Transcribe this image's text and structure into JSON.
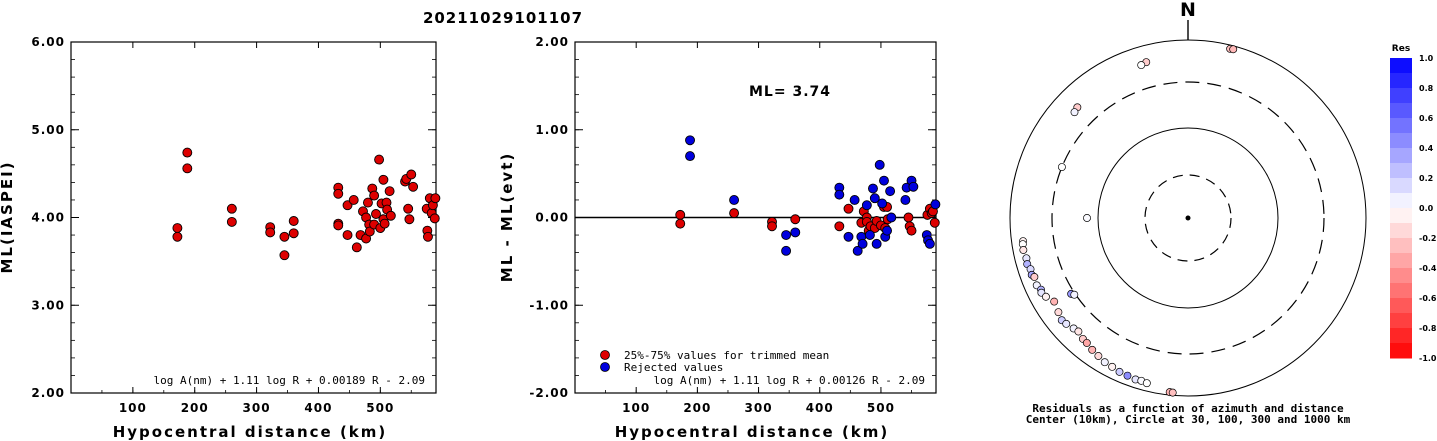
{
  "title": "20211029101107",
  "chart_data": [
    {
      "type": "scatter",
      "ylabel": "ML(IASPEI)",
      "xlabel": "Hypocentral distance (km)",
      "xlim": [
        0,
        590
      ],
      "ylim": [
        2.0,
        6.0
      ],
      "xticks": [
        "100",
        "200",
        "300",
        "400",
        "500"
      ],
      "xtick_values": [
        100,
        200,
        300,
        400,
        500
      ],
      "yticks": [
        "2.00",
        "3.00",
        "4.00",
        "5.00",
        "6.00"
      ],
      "ytick_values": [
        2,
        3,
        4,
        5,
        6
      ],
      "formula": "log A(nm) + 1.11 log R + 0.00189 R - 2.09",
      "point_color": "#dd0000",
      "points": [
        [
          172,
          3.88
        ],
        [
          172,
          3.78
        ],
        [
          188,
          4.74
        ],
        [
          188,
          4.56
        ],
        [
          260,
          4.1
        ],
        [
          260,
          3.95
        ],
        [
          322,
          3.89
        ],
        [
          322,
          3.83
        ],
        [
          345,
          3.57
        ],
        [
          345,
          3.78
        ],
        [
          360,
          3.96
        ],
        [
          360,
          3.82
        ],
        [
          432,
          4.34
        ],
        [
          432,
          4.27
        ],
        [
          432,
          3.93
        ],
        [
          432,
          3.91
        ],
        [
          447,
          4.14
        ],
        [
          447,
          3.8
        ],
        [
          457,
          4.2
        ],
        [
          462,
          3.66
        ],
        [
          468,
          3.8
        ],
        [
          472,
          4.07
        ],
        [
          477,
          4.0
        ],
        [
          477,
          3.76
        ],
        [
          480,
          4.17
        ],
        [
          482,
          3.92
        ],
        [
          483,
          3.84
        ],
        [
          487,
          4.33
        ],
        [
          490,
          4.25
        ],
        [
          490,
          3.92
        ],
        [
          493,
          4.04
        ],
        [
          498,
          4.66
        ],
        [
          500,
          3.88
        ],
        [
          502,
          4.16
        ],
        [
          505,
          4.43
        ],
        [
          505,
          3.98
        ],
        [
          507,
          3.93
        ],
        [
          510,
          4.17
        ],
        [
          511,
          4.09
        ],
        [
          515,
          4.3
        ],
        [
          517,
          4.02
        ],
        [
          540,
          4.41
        ],
        [
          542,
          4.44
        ],
        [
          545,
          4.1
        ],
        [
          547,
          3.98
        ],
        [
          550,
          4.49
        ],
        [
          553,
          4.35
        ],
        [
          575,
          4.1
        ],
        [
          576,
          3.85
        ],
        [
          577,
          3.78
        ],
        [
          580,
          4.22
        ],
        [
          583,
          4.05
        ],
        [
          585,
          4.14
        ],
        [
          588,
          3.99
        ],
        [
          589,
          4.22
        ]
      ]
    },
    {
      "type": "scatter",
      "ylabel": "ML - ML(evt)",
      "xlabel": "Hypocentral distance (km)",
      "xlim": [
        0,
        590
      ],
      "ylim": [
        -2.0,
        2.0
      ],
      "xticks": [
        "100",
        "200",
        "300",
        "400",
        "500"
      ],
      "xtick_values": [
        100,
        200,
        300,
        400,
        500
      ],
      "yticks": [
        "-2.00",
        "-1.00",
        "0.00",
        "1.00",
        "2.00"
      ],
      "ytick_values": [
        -2,
        -1,
        0,
        1,
        2
      ],
      "annotation": "ML= 3.74",
      "formula": "log A(nm) + 1.11 log R + 0.00126 R - 2.09",
      "legend": [
        {
          "label": "25%-75% values for trimmed mean",
          "color": "#dd0000"
        },
        {
          "label": "Rejected values",
          "color": "#0000dd"
        }
      ],
      "series": [
        {
          "name": "25%-75% values for trimmed mean",
          "color": "#dd0000",
          "points": [
            [
              172,
              0.03
            ],
            [
              172,
              -0.07
            ],
            [
              260,
              0.05
            ],
            [
              322,
              -0.05
            ],
            [
              322,
              -0.1
            ],
            [
              360,
              -0.02
            ],
            [
              432,
              -0.1
            ],
            [
              447,
              0.1
            ],
            [
              468,
              -0.06
            ],
            [
              472,
              0.07
            ],
            [
              477,
              0.0
            ],
            [
              477,
              -0.05
            ],
            [
              480,
              -0.15
            ],
            [
              483,
              -0.1
            ],
            [
              490,
              -0.12
            ],
            [
              493,
              -0.04
            ],
            [
              500,
              -0.09
            ],
            [
              505,
              0.12
            ],
            [
              507,
              -0.12
            ],
            [
              510,
              0.12
            ],
            [
              511,
              -0.02
            ],
            [
              545,
              0.0
            ],
            [
              547,
              -0.1
            ],
            [
              550,
              -0.15
            ],
            [
              576,
              0.03
            ],
            [
              580,
              0.1
            ],
            [
              583,
              0.05
            ],
            [
              585,
              0.07
            ],
            [
              588,
              -0.06
            ]
          ]
        },
        {
          "name": "Rejected values",
          "color": "#0000dd",
          "points": [
            [
              188,
              0.88
            ],
            [
              188,
              0.7
            ],
            [
              260,
              0.2
            ],
            [
              345,
              -0.38
            ],
            [
              345,
              -0.2
            ],
            [
              360,
              -0.17
            ],
            [
              432,
              0.34
            ],
            [
              432,
              0.26
            ],
            [
              447,
              -0.22
            ],
            [
              457,
              0.2
            ],
            [
              462,
              -0.38
            ],
            [
              468,
              -0.22
            ],
            [
              470,
              -0.3
            ],
            [
              477,
              0.14
            ],
            [
              482,
              -0.2
            ],
            [
              487,
              0.33
            ],
            [
              490,
              0.22
            ],
            [
              493,
              -0.3
            ],
            [
              498,
              0.6
            ],
            [
              502,
              0.16
            ],
            [
              505,
              0.42
            ],
            [
              507,
              -0.22
            ],
            [
              510,
              -0.15
            ],
            [
              515,
              0.3
            ],
            [
              517,
              0.0
            ],
            [
              540,
              0.2
            ],
            [
              542,
              0.34
            ],
            [
              550,
              0.42
            ],
            [
              553,
              0.35
            ],
            [
              575,
              -0.2
            ],
            [
              577,
              -0.26
            ],
            [
              580,
              -0.3
            ],
            [
              589,
              0.15
            ]
          ]
        }
      ]
    },
    {
      "type": "polar-scatter",
      "north_label": "N",
      "caption_line1": "Residuals as a function of azimuth and distance",
      "caption_line2": "Center (10km), Circle at 30, 100, 300 and 1000 km",
      "rings_km": [
        30,
        100,
        300,
        1000
      ],
      "colorbar": {
        "title": "Res",
        "labels": [
          "1.0",
          "0.8",
          "0.6",
          "0.4",
          "0.2",
          "0.0",
          "-0.2",
          "-0.4",
          "-0.6",
          "-0.8",
          "-1.0"
        ],
        "max_color": "#0000ff",
        "zero_color": "#ffffff",
        "min_color": "#ff0000"
      },
      "stations": [
        {
          "az": 14,
          "dist": 900,
          "res": -0.25
        },
        {
          "az": 15,
          "dist": 910,
          "res": -0.28
        },
        {
          "az": 345,
          "dist": 620,
          "res": -0.2
        },
        {
          "az": 343,
          "dist": 595,
          "res": 0.0
        },
        {
          "az": 315,
          "dist": 540,
          "res": -0.2
        },
        {
          "az": 313,
          "dist": 520,
          "res": 0.05
        },
        {
          "az": 292,
          "dist": 300,
          "res": 0.0
        },
        {
          "az": 270,
          "dist": 130,
          "res": 0.02
        },
        {
          "az": 262,
          "dist": 720,
          "res": -0.05
        },
        {
          "az": 261,
          "dist": 735,
          "res": 0.0
        },
        {
          "az": 259,
          "dist": 745,
          "res": -0.1
        },
        {
          "az": 256,
          "dist": 720,
          "res": 0.1
        },
        {
          "az": 254,
          "dist": 735,
          "res": 0.3
        },
        {
          "az": 252,
          "dist": 700,
          "res": 0.15
        },
        {
          "az": 250,
          "dist": 715,
          "res": 0.35
        },
        {
          "az": 249,
          "dist": 680,
          "res": -0.2
        },
        {
          "az": 246,
          "dist": 700,
          "res": 0.05
        },
        {
          "az": 244,
          "dist": 660,
          "res": 0.3
        },
        {
          "az": 243,
          "dist": 680,
          "res": 0.1
        },
        {
          "az": 241,
          "dist": 640,
          "res": -0.05
        },
        {
          "az": 238,
          "dist": 560,
          "res": -0.3
        },
        {
          "az": 237,
          "dist": 330,
          "res": 0.4
        },
        {
          "az": 236,
          "dist": 310,
          "res": 0.05
        },
        {
          "az": 234,
          "dist": 600,
          "res": -0.15
        },
        {
          "az": 231,
          "dist": 640,
          "res": 0.2
        },
        {
          "az": 229,
          "dist": 620,
          "res": 0.1
        },
        {
          "az": 226,
          "dist": 580,
          "res": 0.05
        },
        {
          "az": 224,
          "dist": 560,
          "res": -0.1
        },
        {
          "az": 221,
          "dist": 600,
          "res": -0.2
        },
        {
          "az": 219,
          "dist": 610,
          "res": -0.35
        },
        {
          "az": 216,
          "dist": 650,
          "res": -0.3
        },
        {
          "az": 213,
          "dist": 680,
          "res": -0.15
        },
        {
          "az": 210,
          "dist": 720,
          "res": 0.05
        },
        {
          "az": 207,
          "dist": 730,
          "res": -0.05
        },
        {
          "az": 204,
          "dist": 760,
          "res": 0.2
        },
        {
          "az": 201,
          "dist": 770,
          "res": 0.45
        },
        {
          "az": 198,
          "dist": 790,
          "res": 0.1
        },
        {
          "az": 196,
          "dist": 780,
          "res": 0.02
        },
        {
          "az": 194,
          "dist": 800,
          "res": 0.0
        },
        {
          "az": 186,
          "dist": 920,
          "res": -0.3
        },
        {
          "az": 185,
          "dist": 925,
          "res": -0.25
        }
      ]
    }
  ]
}
